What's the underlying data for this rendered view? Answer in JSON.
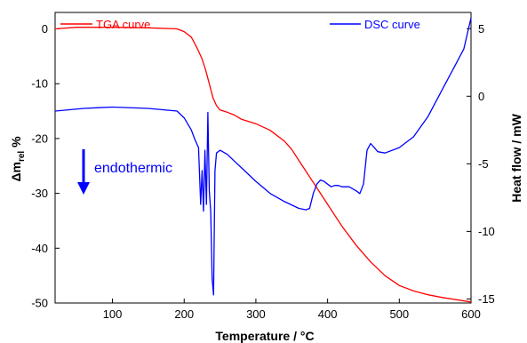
{
  "chart_data": {
    "type": "line",
    "xlabel": "Temperature /  °C",
    "ylabel_left": {
      "main": "Δm",
      "sub": "rel",
      "unit": " %"
    },
    "ylabel_right": "Heat flow / mW",
    "xlim": [
      20,
      600
    ],
    "ylim_left": [
      -50,
      3
    ],
    "ylim_right": [
      -15.3,
      6.2
    ],
    "x_ticks": [
      100,
      200,
      300,
      400,
      500,
      600
    ],
    "y_left_ticks": [
      0,
      -10,
      -20,
      -30,
      -40,
      -50
    ],
    "y_right_ticks": [
      5,
      0,
      -5,
      -10,
      -15
    ],
    "grid": false,
    "legend_position": "top",
    "series": [
      {
        "name": "TGA curve",
        "axis": "left",
        "color": "#ff0000",
        "x": [
          20,
          50,
          100,
          150,
          190,
          200,
          210,
          218,
          225,
          230,
          235,
          240,
          245,
          250,
          260,
          270,
          280,
          300,
          320,
          340,
          350,
          360,
          370,
          380,
          390,
          400,
          410,
          420,
          440,
          460,
          480,
          500,
          520,
          540,
          560,
          580,
          600
        ],
        "y": [
          0,
          0.3,
          0.3,
          0.2,
          0,
          -0.5,
          -1.5,
          -3.5,
          -5.5,
          -7.5,
          -10,
          -12.5,
          -14,
          -14.8,
          -15.2,
          -15.7,
          -16.5,
          -17.3,
          -18.5,
          -20.5,
          -22,
          -24,
          -26,
          -28,
          -30,
          -32,
          -34,
          -36,
          -39.5,
          -42.5,
          -45,
          -46.8,
          -47.8,
          -48.5,
          -49,
          -49.4,
          -49.8
        ]
      },
      {
        "name": "DSC curve",
        "axis": "right",
        "color": "#0000ff",
        "x": [
          20,
          40,
          60,
          80,
          100,
          150,
          190,
          200,
          210,
          215,
          220,
          223,
          225,
          227,
          229,
          231,
          233,
          235,
          237,
          239,
          241,
          243,
          245,
          250,
          260,
          270,
          280,
          300,
          320,
          340,
          360,
          370,
          375,
          380,
          385,
          390,
          395,
          400,
          405,
          410,
          415,
          420,
          430,
          440,
          445,
          450,
          455,
          460,
          465,
          470,
          480,
          500,
          520,
          540,
          560,
          580,
          590,
          600
        ],
        "y": [
          -1.1,
          -1.0,
          -0.9,
          -0.85,
          -0.8,
          -0.9,
          -1.1,
          -1.6,
          -2.5,
          -3.2,
          -3.8,
          -8.0,
          -5.5,
          -8.5,
          -4.0,
          -8.0,
          -1.2,
          -7.0,
          -8.5,
          -13.5,
          -14.7,
          -5.5,
          -4.2,
          -4.0,
          -4.3,
          -4.8,
          -5.3,
          -6.3,
          -7.2,
          -7.8,
          -8.3,
          -8.4,
          -8.3,
          -7.2,
          -6.5,
          -6.2,
          -6.3,
          -6.5,
          -6.7,
          -6.6,
          -6.6,
          -6.7,
          -6.7,
          -7.0,
          -7.2,
          -6.5,
          -4.0,
          -3.5,
          -3.8,
          -4.1,
          -4.2,
          -3.8,
          -3.0,
          -1.5,
          0.5,
          2.5,
          3.5,
          5.8
        ]
      }
    ],
    "annotation": {
      "text": "endothermic",
      "arrow_direction": "down"
    }
  }
}
